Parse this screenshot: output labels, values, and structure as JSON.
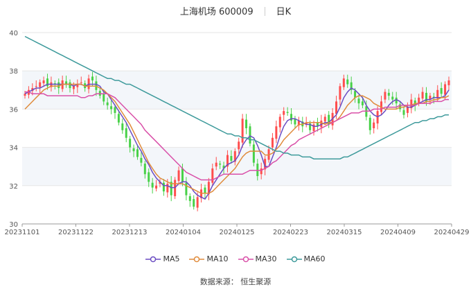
{
  "header": {
    "title": "上海机场 600009",
    "period": "日K"
  },
  "source_text": "数据来源： 恒生聚源",
  "colors": {
    "up": "#ff4d4d",
    "down": "#47d147",
    "band": "#f3f6fa",
    "grid": "#e6e6e6"
  },
  "chart_data": {
    "type": "candlestick",
    "title": "上海机场 600009",
    "ylim": [
      30,
      40
    ],
    "yticks": [
      30,
      32,
      34,
      36,
      38,
      40
    ],
    "xticks": [
      "20231101",
      "20231122",
      "20231213",
      "20240104",
      "20240125",
      "20240223",
      "20240315",
      "20240409",
      "20240429"
    ],
    "x_range": [
      "20231101",
      "20240429"
    ],
    "grid": true,
    "legend_placement": "bottom",
    "close": [
      36.8,
      37.0,
      37.1,
      37.2,
      37.4,
      37.5,
      37.2,
      37.4,
      37.3,
      37.1,
      37.5,
      37.3,
      37.1,
      37.2,
      37.3,
      37.4,
      37.1,
      37.6,
      37.5,
      37.0,
      36.7,
      36.4,
      36.2,
      36.0,
      35.8,
      35.3,
      34.9,
      34.5,
      34.0,
      33.8,
      33.5,
      33.2,
      32.6,
      32.2,
      31.9,
      32.0,
      32.2,
      31.7,
      32.1,
      31.5,
      32.3,
      32.8,
      32.2,
      31.5,
      31.2,
      30.9,
      31.4,
      31.8,
      31.6,
      32.2,
      32.9,
      33.2,
      33.1,
      32.9,
      33.6,
      33.3,
      33.8,
      34.3,
      35.5,
      35.0,
      34.2,
      33.2,
      32.5,
      32.9,
      33.4,
      33.9,
      34.5,
      35.1,
      35.6,
      35.9,
      35.8,
      35.4,
      35.2,
      35.4,
      35.1,
      35.3,
      34.9,
      35.2,
      35.1,
      35.4,
      35.6,
      35.2,
      35.8,
      36.4,
      37.2,
      37.6,
      37.3,
      37.0,
      36.6,
      36.3,
      36.2,
      35.6,
      34.9,
      35.3,
      35.9,
      36.4,
      36.9,
      36.7,
      36.5,
      36.3,
      36.0,
      35.7,
      36.1,
      36.5,
      36.2,
      36.6,
      36.9,
      36.4,
      36.7,
      36.6,
      37.0,
      36.8,
      37.3,
      37.5
    ],
    "series": [
      {
        "name": "MA5",
        "color": "#6a4cc2",
        "values": [
          36.8,
          36.9,
          37.0,
          37.1,
          37.1,
          37.2,
          37.3,
          37.3,
          37.3,
          37.3,
          37.3,
          37.3,
          37.3,
          37.2,
          37.3,
          37.3,
          37.2,
          37.3,
          37.3,
          37.3,
          37.2,
          36.9,
          36.8,
          36.5,
          36.2,
          35.9,
          35.6,
          35.3,
          34.9,
          34.5,
          34.1,
          33.8,
          33.4,
          33.1,
          32.7,
          32.4,
          32.2,
          32.0,
          32.0,
          31.9,
          31.9,
          32.1,
          32.2,
          32.2,
          32.0,
          31.7,
          31.5,
          31.4,
          31.3,
          31.6,
          32.0,
          32.3,
          32.6,
          32.9,
          33.1,
          33.2,
          33.3,
          33.6,
          34.1,
          34.4,
          34.6,
          34.5,
          34.1,
          33.6,
          33.0,
          33.0,
          33.5,
          34.0,
          34.6,
          35.1,
          35.4,
          35.5,
          35.5,
          35.4,
          35.3,
          35.2,
          35.2,
          35.1,
          35.1,
          35.2,
          35.3,
          35.3,
          35.5,
          35.7,
          36.1,
          36.6,
          36.9,
          37.1,
          37.0,
          36.8,
          36.6,
          36.2,
          35.9,
          35.7,
          35.6,
          35.7,
          35.9,
          36.2,
          36.4,
          36.5,
          36.4,
          36.2,
          36.1,
          36.1,
          36.2,
          36.3,
          36.4,
          36.5,
          36.5,
          36.6,
          36.6,
          36.6,
          36.7,
          37.0
        ]
      },
      {
        "name": "MA10",
        "color": "#e08b3b",
        "values": [
          36.0,
          36.2,
          36.4,
          36.6,
          36.8,
          37.0,
          37.1,
          37.2,
          37.2,
          37.2,
          37.3,
          37.3,
          37.3,
          37.3,
          37.3,
          37.3,
          37.2,
          37.2,
          37.2,
          37.2,
          37.1,
          37.0,
          36.8,
          36.6,
          36.4,
          36.1,
          35.8,
          35.5,
          35.2,
          34.8,
          34.4,
          34.0,
          33.6,
          33.2,
          32.9,
          32.6,
          32.4,
          32.3,
          32.2,
          32.1,
          32.1,
          32.1,
          32.1,
          32.0,
          31.9,
          31.8,
          31.7,
          31.6,
          31.6,
          31.6,
          31.7,
          31.9,
          32.1,
          32.3,
          32.5,
          32.7,
          32.9,
          33.2,
          33.5,
          33.7,
          33.8,
          33.8,
          33.8,
          33.8,
          33.6,
          33.6,
          33.7,
          33.9,
          34.1,
          34.4,
          34.6,
          34.8,
          35.0,
          35.2,
          35.2,
          35.3,
          35.3,
          35.3,
          35.3,
          35.3,
          35.2,
          35.3,
          35.3,
          35.4,
          35.6,
          35.9,
          36.2,
          36.4,
          36.6,
          36.7,
          36.7,
          36.6,
          36.5,
          36.3,
          36.2,
          36.1,
          36.0,
          36.0,
          36.0,
          36.0,
          36.1,
          36.1,
          36.2,
          36.2,
          36.3,
          36.3,
          36.3,
          36.4,
          36.4,
          36.5,
          36.5,
          36.6,
          36.6,
          36.7
        ]
      },
      {
        "name": "MA30",
        "color": "#d94fa8",
        "values": [
          36.9,
          36.9,
          36.8,
          36.8,
          36.8,
          36.8,
          36.7,
          36.7,
          36.7,
          36.7,
          36.7,
          36.7,
          36.7,
          36.7,
          36.7,
          36.6,
          36.6,
          36.7,
          36.7,
          36.8,
          36.8,
          36.8,
          36.8,
          36.7,
          36.6,
          36.4,
          36.2,
          36.0,
          35.8,
          35.6,
          35.4,
          35.2,
          34.9,
          34.7,
          34.5,
          34.3,
          34.1,
          33.9,
          33.7,
          33.5,
          33.3,
          33.1,
          32.9,
          32.7,
          32.6,
          32.5,
          32.4,
          32.3,
          32.3,
          32.3,
          32.3,
          32.4,
          32.5,
          32.6,
          32.6,
          32.6,
          32.6,
          32.6,
          32.6,
          32.7,
          32.8,
          32.8,
          32.8,
          32.8,
          32.9,
          33.0,
          33.2,
          33.3,
          33.5,
          33.7,
          33.9,
          34.1,
          34.2,
          34.4,
          34.5,
          34.6,
          34.7,
          34.8,
          34.9,
          35.0,
          35.1,
          35.2,
          35.3,
          35.4,
          35.5,
          35.6,
          35.7,
          35.8,
          35.8,
          35.8,
          35.9,
          35.9,
          35.9,
          36.0,
          36.0,
          36.0,
          36.1,
          36.1,
          36.1,
          36.1,
          36.2,
          36.2,
          36.2,
          36.2,
          36.2,
          36.3,
          36.3,
          36.3,
          36.3,
          36.4,
          36.4,
          36.4,
          36.5,
          36.5
        ]
      },
      {
        "name": "MA60",
        "color": "#3d9a9b",
        "values": [
          39.8,
          39.7,
          39.6,
          39.5,
          39.4,
          39.3,
          39.2,
          39.1,
          39.0,
          38.9,
          38.8,
          38.7,
          38.6,
          38.5,
          38.4,
          38.3,
          38.2,
          38.1,
          38.0,
          37.9,
          37.8,
          37.7,
          37.6,
          37.6,
          37.5,
          37.5,
          37.4,
          37.3,
          37.3,
          37.2,
          37.1,
          37.0,
          36.9,
          36.8,
          36.7,
          36.6,
          36.5,
          36.4,
          36.3,
          36.2,
          36.1,
          36.0,
          35.9,
          35.8,
          35.7,
          35.6,
          35.5,
          35.4,
          35.3,
          35.2,
          35.1,
          35.0,
          34.9,
          34.8,
          34.7,
          34.7,
          34.6,
          34.6,
          34.5,
          34.5,
          34.4,
          34.4,
          34.3,
          34.2,
          34.1,
          34.0,
          33.9,
          33.8,
          33.8,
          33.7,
          33.7,
          33.6,
          33.6,
          33.6,
          33.5,
          33.5,
          33.5,
          33.4,
          33.4,
          33.4,
          33.4,
          33.4,
          33.4,
          33.4,
          33.4,
          33.5,
          33.5,
          33.6,
          33.7,
          33.8,
          33.9,
          34.0,
          34.1,
          34.2,
          34.3,
          34.4,
          34.5,
          34.6,
          34.7,
          34.8,
          34.9,
          35.0,
          35.1,
          35.2,
          35.3,
          35.3,
          35.4,
          35.4,
          35.5,
          35.5,
          35.6,
          35.6,
          35.7,
          35.7
        ]
      }
    ]
  }
}
